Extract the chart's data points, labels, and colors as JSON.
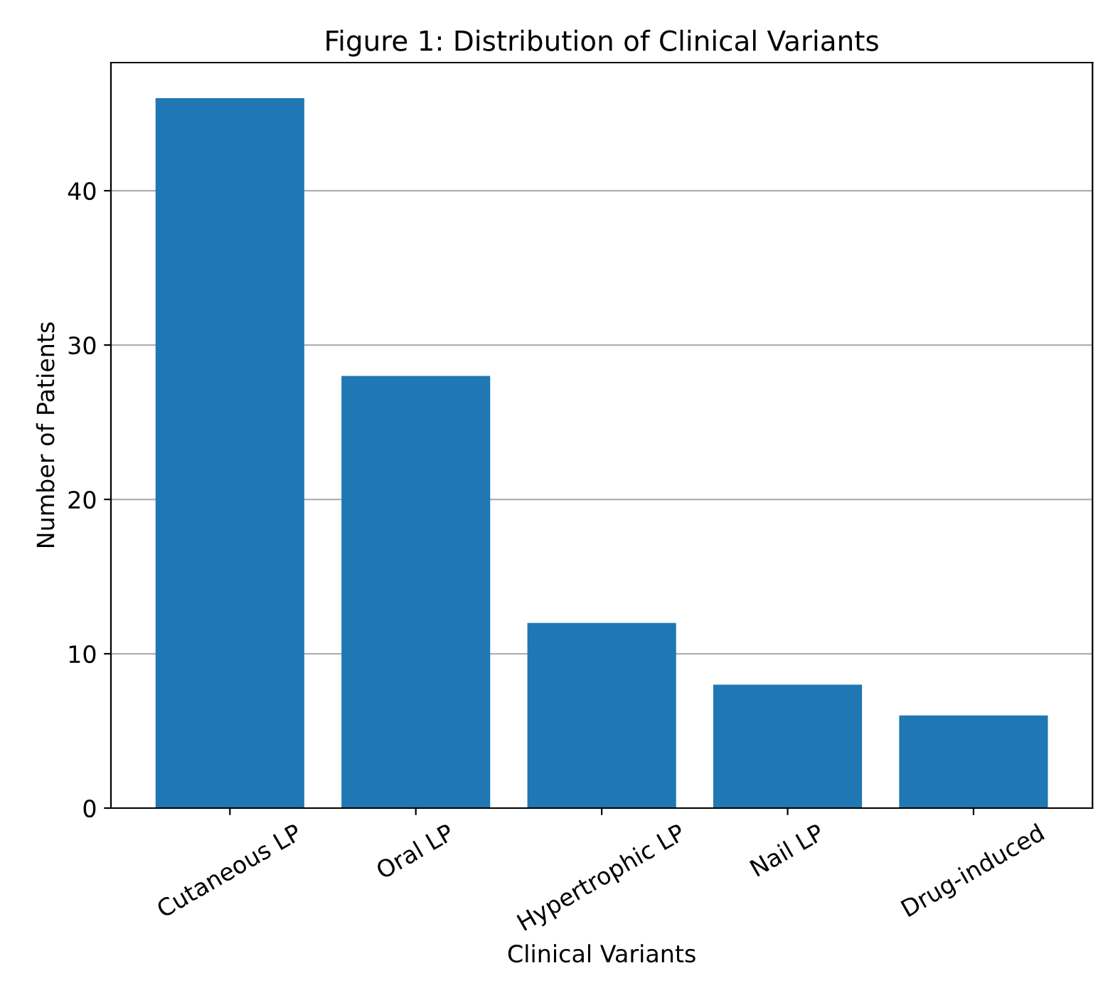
{
  "chart_data": {
    "type": "bar",
    "title": "Figure 1: Distribution of Clinical Variants",
    "xlabel": "Clinical Variants",
    "ylabel": "Number of Patients",
    "categories": [
      "Cutaneous LP",
      "Oral LP",
      "Hypertrophic LP",
      "Nail LP",
      "Drug-induced"
    ],
    "values": [
      46,
      28,
      12,
      8,
      6
    ],
    "color": "#1f77b4",
    "ylim": [
      0,
      48.3
    ],
    "yticks": [
      0,
      10,
      20,
      30,
      40
    ],
    "grid": "y"
  }
}
